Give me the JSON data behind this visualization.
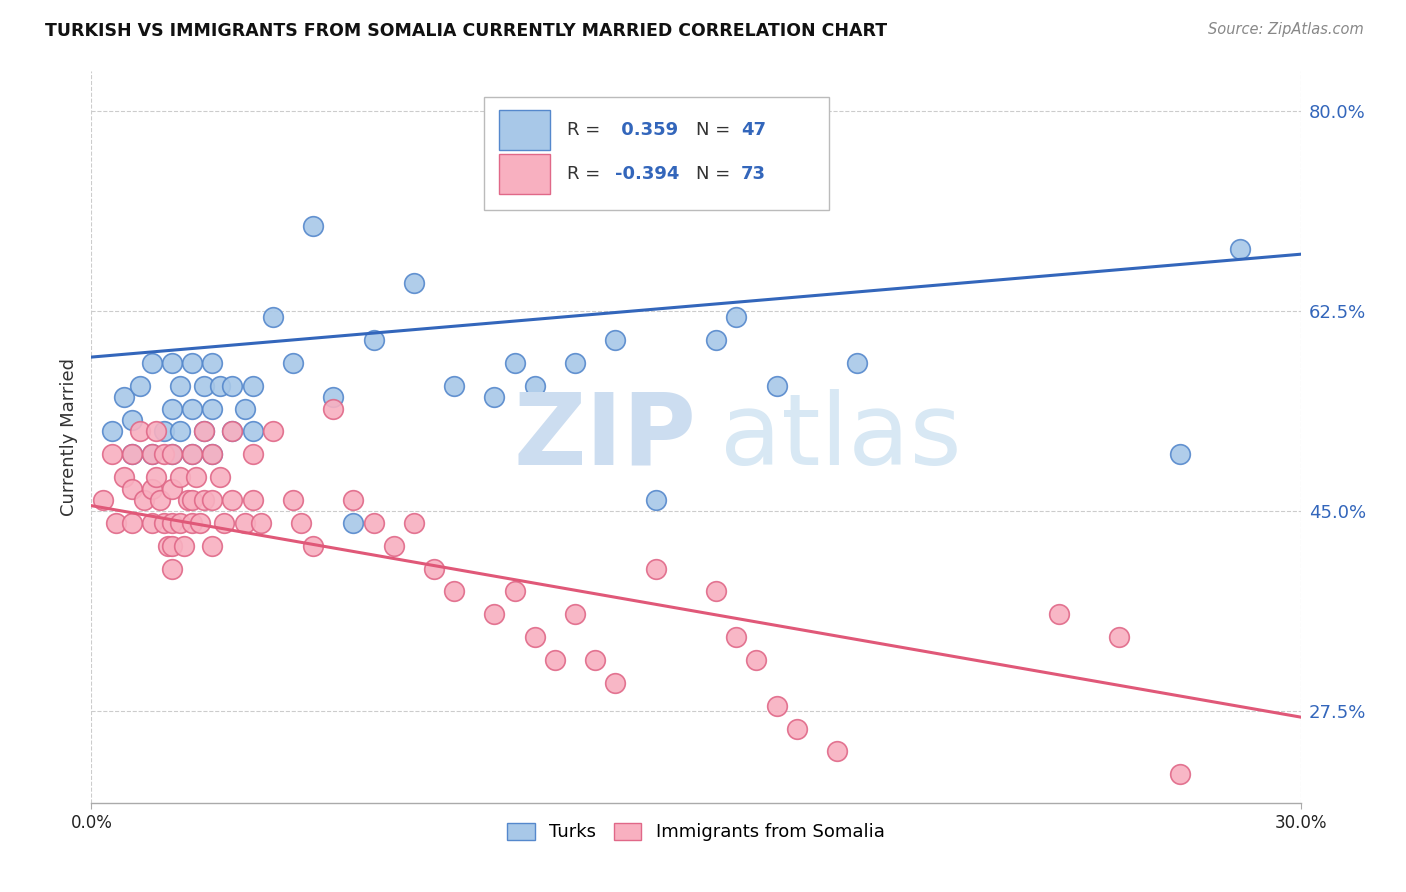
{
  "title": "TURKISH VS IMMIGRANTS FROM SOMALIA CURRENTLY MARRIED CORRELATION CHART",
  "source": "Source: ZipAtlas.com",
  "ylabel_label": "Currently Married",
  "xmin": 0.0,
  "xmax": 0.3,
  "ymin": 0.195,
  "ymax": 0.835,
  "turks_color": "#a8c8e8",
  "turks_edge_color": "#5588cc",
  "somalia_color": "#f8b0c0",
  "somalia_edge_color": "#e06888",
  "blue_line_color": "#3366bb",
  "pink_line_color": "#e05878",
  "grid_color": "#cccccc",
  "turks_line_y0": 0.585,
  "turks_line_y1": 0.675,
  "somalia_line_y0": 0.455,
  "somalia_line_y1": 0.27,
  "ytick_vals": [
    0.275,
    0.45,
    0.625,
    0.8
  ],
  "ytick_labels": [
    "27.5%",
    "45.0%",
    "62.5%",
    "80.0%"
  ],
  "xtick_vals": [
    0.0,
    0.3
  ],
  "xtick_labels": [
    "0.0%",
    "30.0%"
  ],
  "turks_x": [
    0.005,
    0.008,
    0.01,
    0.01,
    0.012,
    0.015,
    0.015,
    0.018,
    0.02,
    0.02,
    0.02,
    0.022,
    0.022,
    0.025,
    0.025,
    0.025,
    0.028,
    0.028,
    0.03,
    0.03,
    0.03,
    0.032,
    0.035,
    0.035,
    0.038,
    0.04,
    0.04,
    0.045,
    0.05,
    0.055,
    0.06,
    0.065,
    0.07,
    0.08,
    0.09,
    0.1,
    0.105,
    0.11,
    0.12,
    0.13,
    0.14,
    0.155,
    0.16,
    0.17,
    0.19,
    0.27,
    0.285
  ],
  "turks_y": [
    0.52,
    0.55,
    0.5,
    0.53,
    0.56,
    0.5,
    0.58,
    0.52,
    0.5,
    0.54,
    0.58,
    0.52,
    0.56,
    0.5,
    0.54,
    0.58,
    0.52,
    0.56,
    0.5,
    0.54,
    0.58,
    0.56,
    0.52,
    0.56,
    0.54,
    0.52,
    0.56,
    0.62,
    0.58,
    0.7,
    0.55,
    0.44,
    0.6,
    0.65,
    0.56,
    0.55,
    0.58,
    0.56,
    0.58,
    0.6,
    0.46,
    0.6,
    0.62,
    0.56,
    0.58,
    0.5,
    0.68
  ],
  "somalia_x": [
    0.003,
    0.005,
    0.006,
    0.008,
    0.01,
    0.01,
    0.01,
    0.012,
    0.013,
    0.015,
    0.015,
    0.015,
    0.016,
    0.016,
    0.017,
    0.018,
    0.018,
    0.019,
    0.02,
    0.02,
    0.02,
    0.02,
    0.02,
    0.022,
    0.022,
    0.023,
    0.024,
    0.025,
    0.025,
    0.025,
    0.026,
    0.027,
    0.028,
    0.028,
    0.03,
    0.03,
    0.03,
    0.032,
    0.033,
    0.035,
    0.035,
    0.038,
    0.04,
    0.04,
    0.042,
    0.045,
    0.05,
    0.052,
    0.055,
    0.06,
    0.065,
    0.07,
    0.075,
    0.08,
    0.085,
    0.09,
    0.1,
    0.105,
    0.11,
    0.115,
    0.12,
    0.125,
    0.13,
    0.14,
    0.155,
    0.16,
    0.165,
    0.17,
    0.175,
    0.185,
    0.24,
    0.255,
    0.27
  ],
  "somalia_y": [
    0.46,
    0.5,
    0.44,
    0.48,
    0.5,
    0.47,
    0.44,
    0.52,
    0.46,
    0.5,
    0.47,
    0.44,
    0.52,
    0.48,
    0.46,
    0.5,
    0.44,
    0.42,
    0.5,
    0.47,
    0.44,
    0.42,
    0.4,
    0.48,
    0.44,
    0.42,
    0.46,
    0.5,
    0.46,
    0.44,
    0.48,
    0.44,
    0.52,
    0.46,
    0.5,
    0.46,
    0.42,
    0.48,
    0.44,
    0.52,
    0.46,
    0.44,
    0.5,
    0.46,
    0.44,
    0.52,
    0.46,
    0.44,
    0.42,
    0.54,
    0.46,
    0.44,
    0.42,
    0.44,
    0.4,
    0.38,
    0.36,
    0.38,
    0.34,
    0.32,
    0.36,
    0.32,
    0.3,
    0.4,
    0.38,
    0.34,
    0.32,
    0.28,
    0.26,
    0.24,
    0.36,
    0.34,
    0.22
  ]
}
